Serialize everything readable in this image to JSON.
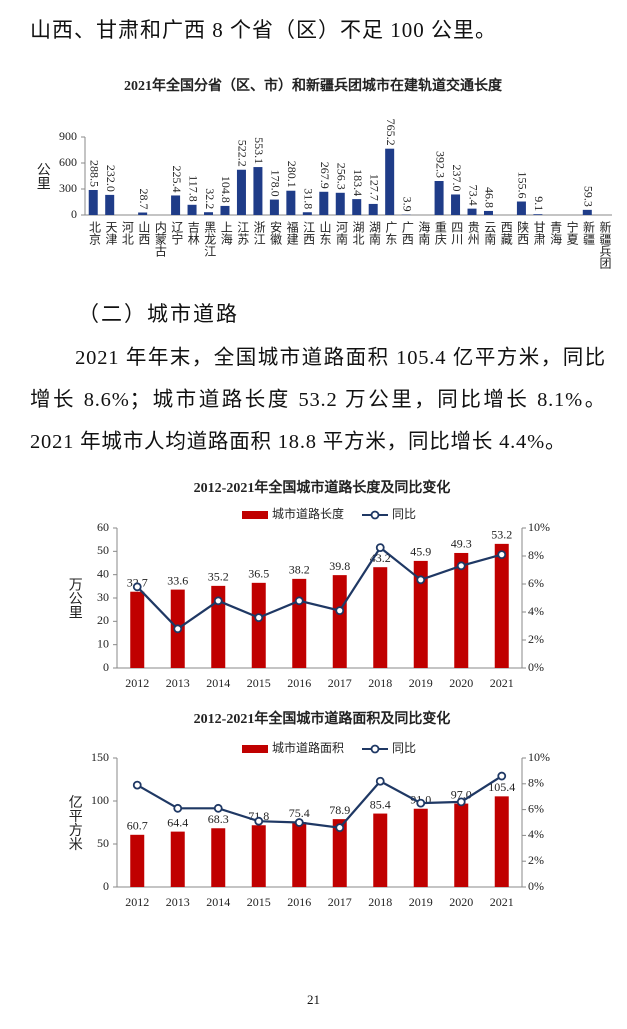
{
  "header_text": "山西、甘肃和广西 8 个省（区）不足 100 公里。",
  "section_heading": "（二）城市道路",
  "paragraph": "2021 年年末，全国城市道路面积 105.4 亿平方米，同比增长 8.6%；城市道路长度 53.2 万公里，同比增长 8.1%。2021 年城市人均道路面积 18.8 平方米，同比增长 4.4%。",
  "page_number": "21",
  "chart_data": [
    {
      "type": "bar",
      "title": "2021年全国分省（区、市）和新疆兵团城市在建轨道交通长度",
      "ylabel": "公里",
      "categories": [
        "北京",
        "天津",
        "河北",
        "山西",
        "内蒙古",
        "辽宁",
        "吉林",
        "黑龙江",
        "上海",
        "江苏",
        "浙江",
        "安徽",
        "福建",
        "江西",
        "山东",
        "河南",
        "湖北",
        "湖南",
        "广东",
        "广西",
        "海南",
        "重庆",
        "四川",
        "贵州",
        "云南",
        "西藏",
        "陕西",
        "甘肃",
        "青海",
        "宁夏",
        "新疆",
        "新疆兵团"
      ],
      "values": [
        288.5,
        232,
        null,
        28.7,
        null,
        225.4,
        117.8,
        32.2,
        104.8,
        522.2,
        553.1,
        178,
        280.1,
        31.8,
        267.9,
        256.3,
        183.4,
        127.7,
        765.2,
        3.9,
        null,
        392.3,
        237,
        73.4,
        46.8,
        null,
        155.6,
        9.1,
        null,
        null,
        59.3,
        null
      ],
      "value_labels": [
        "288.5",
        "232.0",
        null,
        "28.7",
        null,
        "225.4",
        "117.8",
        "32.2",
        "104.8",
        "522.2",
        "553.1",
        "178.0",
        "280.1",
        "31.8",
        "267.9",
        "256.3",
        "183.4",
        "127.7",
        "765.2",
        "3.9",
        null,
        "392.3",
        "237.0",
        "73.4",
        "46.8",
        null,
        "155.6",
        "9.1",
        null,
        null,
        "59.3",
        null
      ],
      "color": "#1f3c88",
      "ylim": [
        0,
        900
      ],
      "yticks": [
        0,
        300,
        600,
        900
      ]
    },
    {
      "type": "combo",
      "title": "2012-2021年全国城市道路长度及同比变化",
      "ylabel": "万公里",
      "categories": [
        "2012",
        "2013",
        "2014",
        "2015",
        "2016",
        "2017",
        "2018",
        "2019",
        "2020",
        "2021"
      ],
      "series": [
        {
          "name": "城市道路长度",
          "type": "bar",
          "color": "#c00000",
          "values": [
            32.7,
            33.6,
            35.2,
            36.5,
            38.2,
            39.8,
            43.2,
            45.9,
            49.3,
            53.2
          ]
        },
        {
          "name": "同比",
          "type": "line",
          "axis": "y2",
          "color": "#1f3864",
          "values": [
            5.8,
            2.8,
            4.8,
            3.6,
            4.8,
            4.1,
            8.6,
            6.3,
            7.3,
            8.1
          ]
        }
      ],
      "ylim": [
        0,
        60
      ],
      "yticks": [
        0,
        10,
        20,
        30,
        40,
        50,
        60
      ],
      "y2lim": [
        0,
        10
      ],
      "y2ticks": [
        {
          "value": 0,
          "label": "0%"
        },
        {
          "value": 2,
          "label": "2%"
        },
        {
          "value": 4,
          "label": "4%"
        },
        {
          "value": 6,
          "label": "6%"
        },
        {
          "value": 8,
          "label": "8%"
        },
        {
          "value": 10,
          "label": "10%"
        }
      ],
      "legend": "top"
    },
    {
      "type": "combo",
      "title": "2012-2021年全国城市道路面积及同比变化",
      "ylabel": "亿平方米",
      "categories": [
        "2012",
        "2013",
        "2014",
        "2015",
        "2016",
        "2017",
        "2018",
        "2019",
        "2020",
        "2021"
      ],
      "series": [
        {
          "name": "城市道路面积",
          "type": "bar",
          "color": "#c00000",
          "values": [
            60.7,
            64.4,
            68.3,
            71.8,
            75.4,
            78.9,
            85.4,
            91,
            97,
            105.4
          ],
          "value_labels": [
            "60.7",
            "64.4",
            "68.3",
            "71.8",
            "75.4",
            "78.9",
            "85.4",
            "91.0",
            "97.0",
            "105.4"
          ]
        },
        {
          "name": "同比",
          "type": "line",
          "axis": "y2",
          "color": "#1f3864",
          "values": [
            7.9,
            6.1,
            6.1,
            5.1,
            5.0,
            4.6,
            8.2,
            6.5,
            6.6,
            8.6
          ]
        }
      ],
      "ylim": [
        0,
        150
      ],
      "yticks": [
        0,
        50,
        100,
        150
      ],
      "y2lim": [
        0,
        10
      ],
      "y2ticks": [
        {
          "value": 0,
          "label": "0%"
        },
        {
          "value": 2,
          "label": "2%"
        },
        {
          "value": 4,
          "label": "4%"
        },
        {
          "value": 6,
          "label": "6%"
        },
        {
          "value": 8,
          "label": "8%"
        },
        {
          "value": 10,
          "label": "10%"
        }
      ],
      "legend": "top"
    }
  ]
}
